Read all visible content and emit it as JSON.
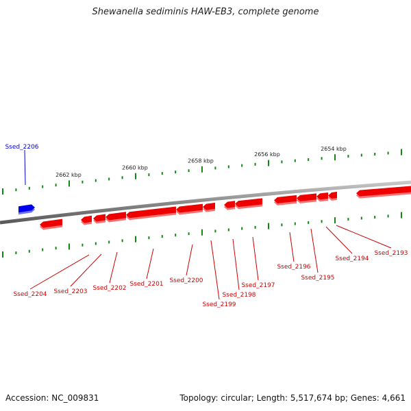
{
  "title": "Shewanella sediminis HAW-EB3, complete genome",
  "footer": {
    "accession": "Accession: NC_009831",
    "stats": "Topology: circular; Length: 5,517,674 bp; Genes: 4,661"
  },
  "colors": {
    "backbone": "#888888",
    "forward_gene": "#0000ee",
    "reverse_gene": "#ee0000",
    "tick": "#118811",
    "label_reverse": "#cc0000",
    "label_forward": "#0000cc"
  },
  "kbp_labels": [
    "2662 kbp",
    "2660 kbp",
    "2658 kbp",
    "2656 kbp",
    "2654 kbp"
  ],
  "gene_labels": [
    {
      "id": "Ssed_2206",
      "strand": "forward"
    },
    {
      "id": "Ssed_2204",
      "strand": "reverse"
    },
    {
      "id": "Ssed_2203",
      "strand": "reverse"
    },
    {
      "id": "Ssed_2202",
      "strand": "reverse"
    },
    {
      "id": "Ssed_2201",
      "strand": "reverse"
    },
    {
      "id": "Ssed_2200",
      "strand": "reverse"
    },
    {
      "id": "Ssed_2199",
      "strand": "reverse"
    },
    {
      "id": "Ssed_2198",
      "strand": "reverse"
    },
    {
      "id": "Ssed_2197",
      "strand": "reverse"
    },
    {
      "id": "Ssed_2196",
      "strand": "reverse"
    },
    {
      "id": "Ssed_2195",
      "strand": "reverse"
    },
    {
      "id": "Ssed_2194",
      "strand": "reverse"
    },
    {
      "id": "Ssed_2193",
      "strand": "reverse"
    }
  ]
}
